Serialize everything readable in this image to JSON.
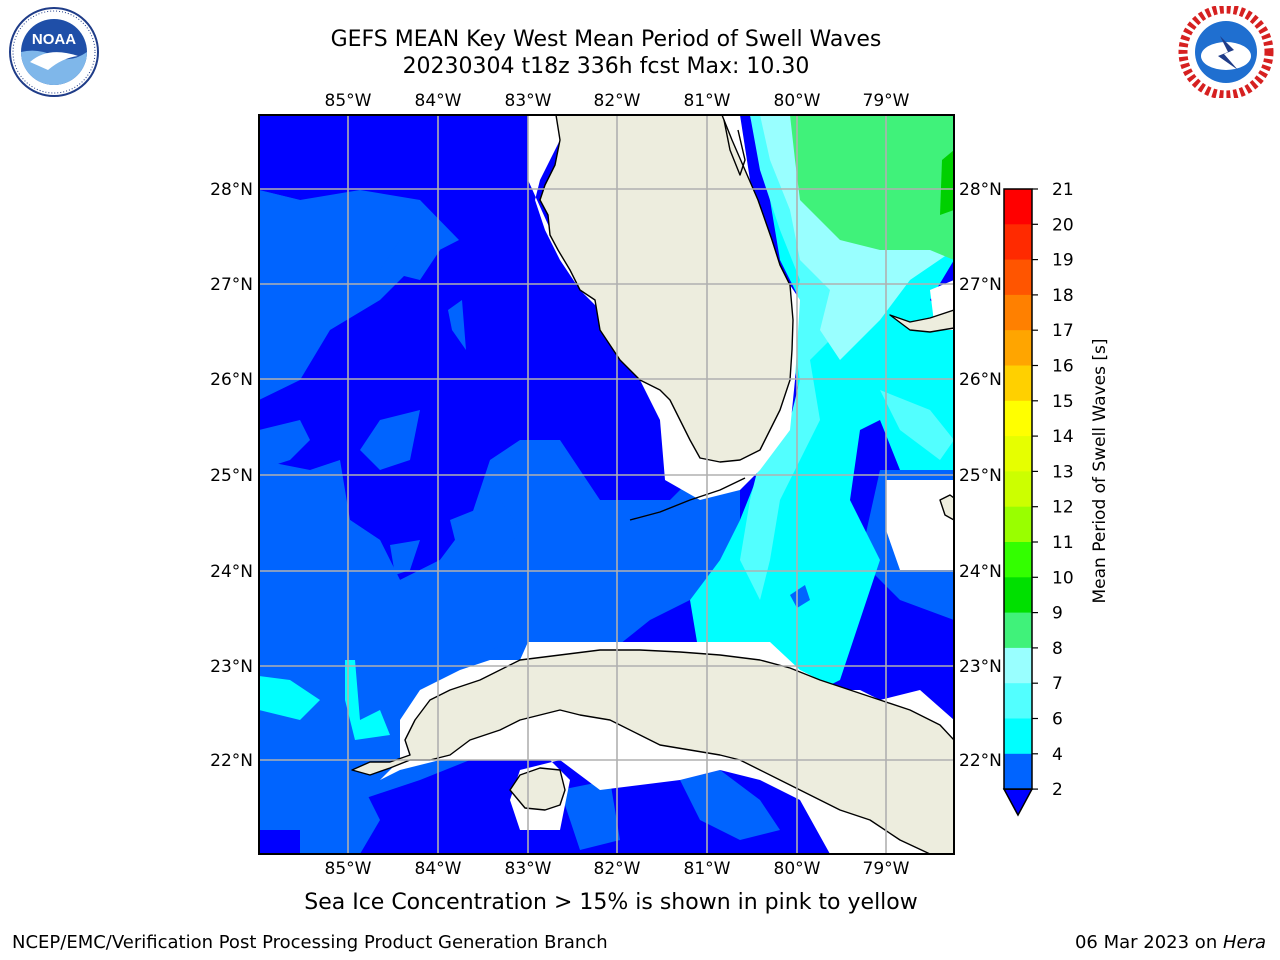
{
  "header": {
    "title_line1": "GEFS MEAN Key West Mean Period of Swell Waves",
    "title_line2": "20230304 t18z 336h fcst   Max: 10.30"
  },
  "logos": {
    "noa_text": "NOAA",
    "noa_ring_text": "NATIONAL OCEANIC AND ATMOSPHERIC ADMINISTRATION · U.S. DEPARTMENT OF COMMERCE",
    "nws_ring_text": "NATIONAL WEATHER SERVICE"
  },
  "map": {
    "lon_labels": [
      "85°W",
      "84°W",
      "83°W",
      "82°W",
      "81°W",
      "80°W",
      "79°W"
    ],
    "lat_labels": [
      "28°N",
      "27°N",
      "26°N",
      "25°N",
      "24°N",
      "23°N",
      "22°N"
    ],
    "colors": {
      "deep_blue": "#0000ff",
      "blue": "#0064ff",
      "cyan": "#00ffff",
      "light_cyan": "#52ffff",
      "pale_cyan": "#99ffff",
      "green": "#40f27a",
      "land": "#ededde",
      "grid": "#b0b0b0"
    }
  },
  "colorbar": {
    "label": "Mean Period of Swell Waves [s]",
    "ticks": [
      "21",
      "20",
      "19",
      "18",
      "17",
      "16",
      "15",
      "14",
      "13",
      "12",
      "11",
      "10",
      "9",
      "8",
      "7",
      "6",
      "4",
      "2"
    ],
    "colors": [
      "#ff0000",
      "#ff2a00",
      "#ff5500",
      "#ff8000",
      "#ffa500",
      "#ffd000",
      "#ffff00",
      "#e6ff00",
      "#ccff00",
      "#99ff00",
      "#33ff00",
      "#00e000",
      "#40f27a",
      "#99ffff",
      "#52ffff",
      "#00ffff",
      "#0064ff"
    ],
    "under_color": "#0000ff"
  },
  "footer": {
    "note": "Sea Ice Concentration > 15% is shown in pink to yellow",
    "left": "NCEP/EMC/Verification Post Processing Product Generation Branch",
    "right_prefix": "06 Mar 2023 on ",
    "right_host": "Hera"
  }
}
